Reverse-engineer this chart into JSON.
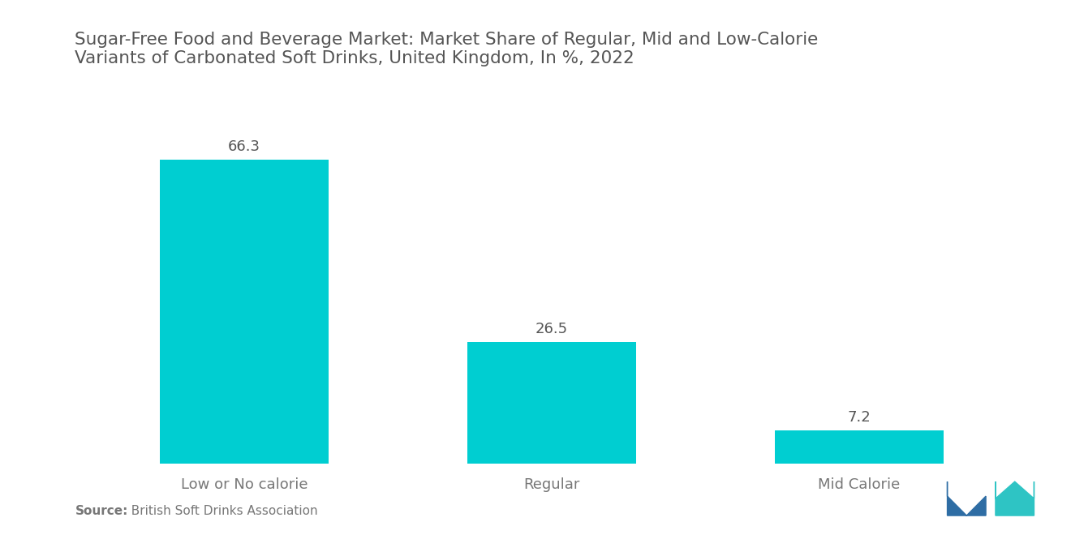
{
  "title": "Sugar-Free Food and Beverage Market: Market Share of Regular, Mid and Low-Calorie\nVariants of Carbonated Soft Drinks, United Kingdom, In %, 2022",
  "categories": [
    "Low or No calorie",
    "Regular",
    "Mid Calorie"
  ],
  "values": [
    66.3,
    26.5,
    7.2
  ],
  "bar_color": "#00CED1",
  "background_color": "#ffffff",
  "title_color": "#555555",
  "label_color": "#777777",
  "value_color": "#555555",
  "source_bold": "Source:",
  "source_text": "  British Soft Drinks Association",
  "title_fontsize": 15.5,
  "label_fontsize": 13,
  "value_fontsize": 13,
  "source_fontsize": 11,
  "ylim": [
    0,
    80
  ],
  "bar_width": 0.55,
  "x_positions": [
    0,
    1,
    2
  ]
}
